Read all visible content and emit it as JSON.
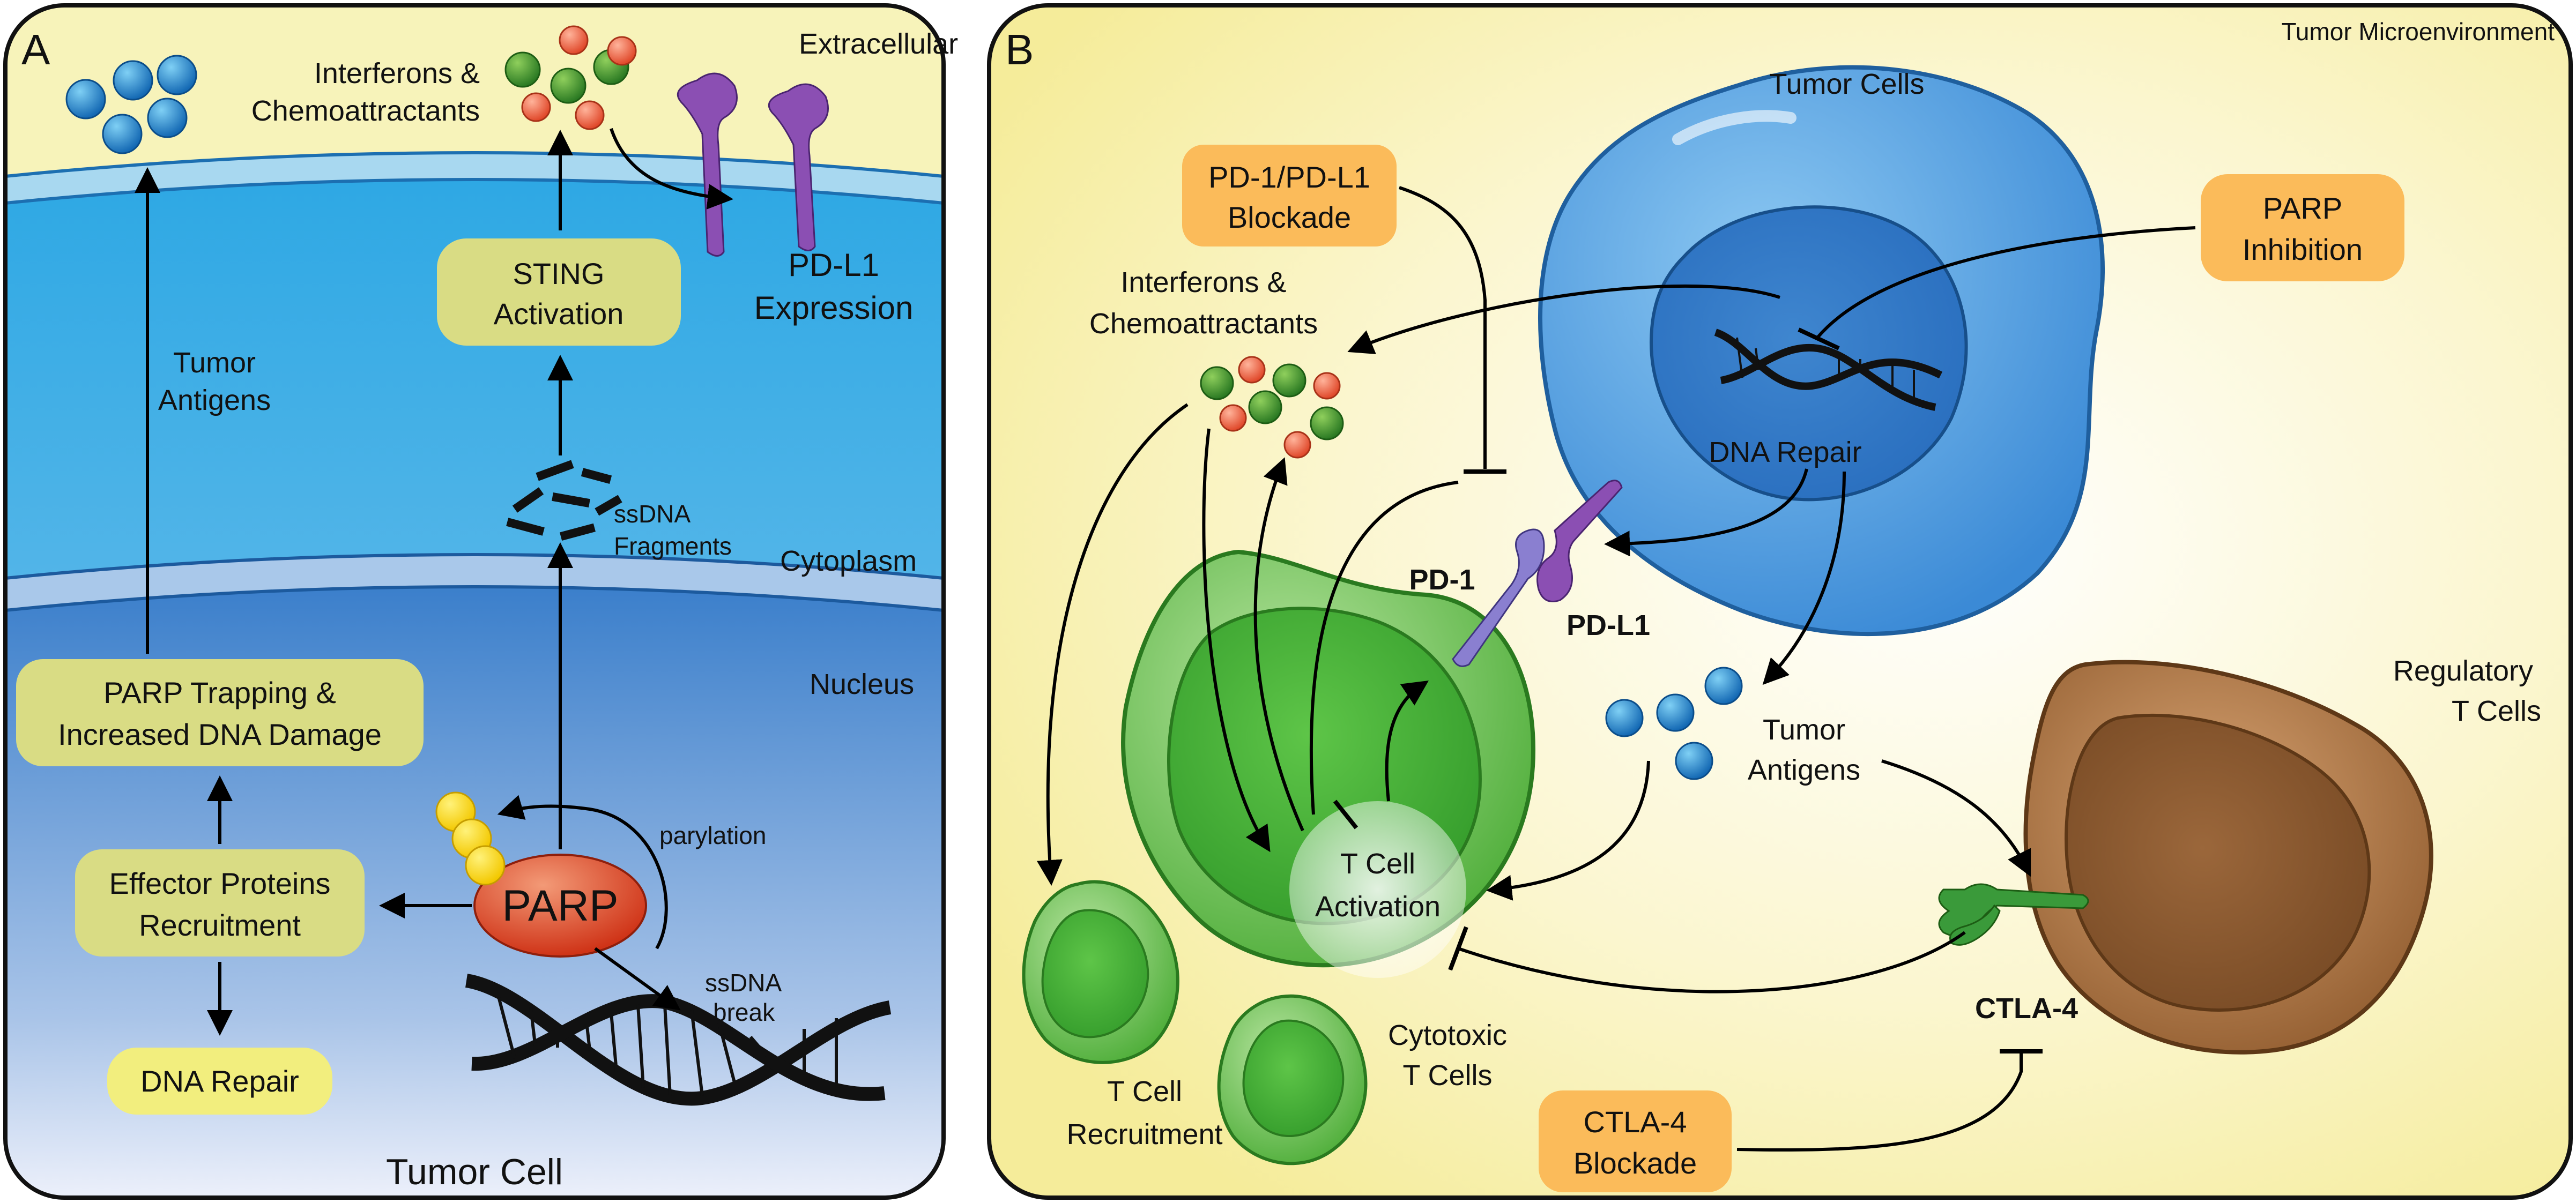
{
  "panel_a": {
    "letter": "A",
    "title": "Tumor Cell",
    "regions": {
      "extracellular": "Extracellular",
      "cytoplasm": "Cytoplasm",
      "nucleus": "Nucleus"
    },
    "labels": {
      "interferons_1": "Interferons &",
      "interferons_2": "Chemoattractants",
      "pdl1_expr_1": "PD-L1",
      "pdl1_expr_2": "Expression",
      "tumor_antigens_1": "Tumor",
      "tumor_antigens_2": "Antigens",
      "ssdna_frag_1": "ssDNA",
      "ssdna_frag_2": "Fragments",
      "parylation": "parylation",
      "ssdna_break_1": "ssDNA",
      "ssdna_break_2": "break",
      "parp": "PARP"
    },
    "boxes": {
      "sting_1": "STING",
      "sting_2": "Activation",
      "trapping_1": "PARP Trapping &",
      "trapping_2": "Increased DNA Damage",
      "effector_1": "Effector Proteins",
      "effector_2": "Recruitment",
      "dna_repair": "DNA Repair"
    }
  },
  "panel_b": {
    "letter": "B",
    "title": "Tumor Microenvironment",
    "labels": {
      "tumor_cells": "Tumor Cells",
      "interferons_1": "Interferons &",
      "interferons_2": "Chemoattractants",
      "dna_repair": "DNA Repair",
      "pd1": "PD-1",
      "pdl1": "PD-L1",
      "tumor_antigens_1": "Tumor",
      "tumor_antigens_2": "Antigens",
      "treg_1": "Regulatory",
      "treg_2": "T Cells",
      "tcell_act_1": "T Cell",
      "tcell_act_2": "Activation",
      "cytotoxic_1": "Cytotoxic",
      "cytotoxic_2": "T Cells",
      "recruitment_1": "T Cell",
      "recruitment_2": "Recruitment",
      "ctla4": "CTLA-4"
    },
    "boxes": {
      "pd1_blockade_1": "PD-1/PD-L1",
      "pd1_blockade_2": "Blockade",
      "parp_inhib_1": "PARP",
      "parp_inhib_2": "Inhibition",
      "ctla4_blockade_1": "CTLA-4",
      "ctla4_blockade_2": "Blockade"
    }
  },
  "colors": {
    "extracellular": "#f7f3ba",
    "cytoplasm": "#5bb8e6",
    "nucleus": "#7aa8da",
    "box_green": "#d9dc84",
    "box_orange": "#fbbb5a",
    "tumor_cell": "#5aa6e3",
    "tcell": "#5fbf47",
    "treg": "#a87344",
    "parp": "#e0472a",
    "pdl1": "#8b4fb3"
  }
}
